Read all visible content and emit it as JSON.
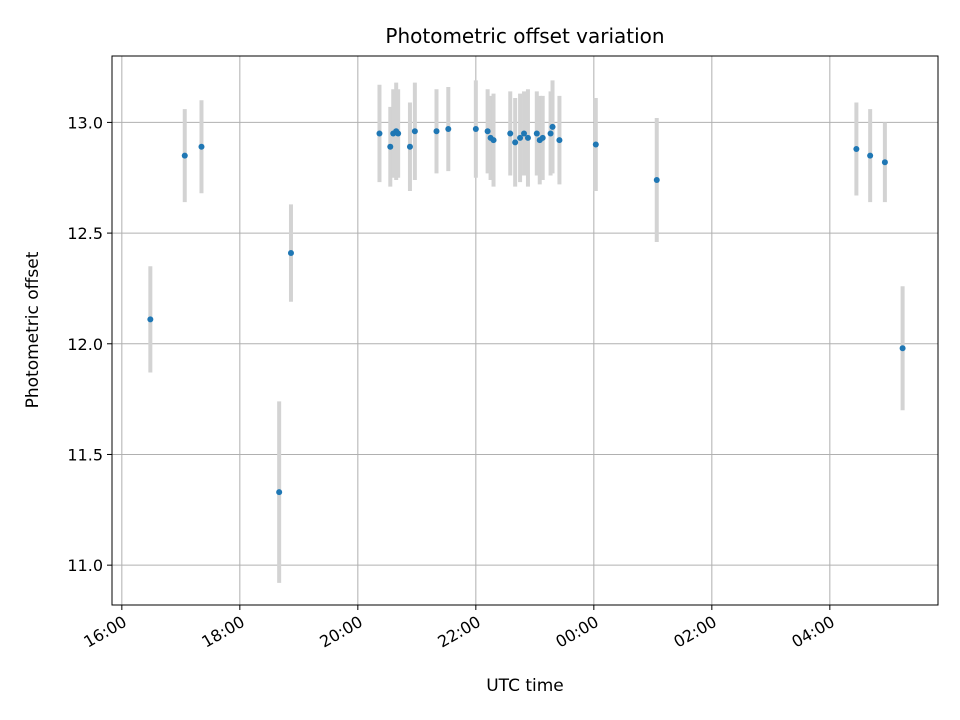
{
  "chart_data": {
    "type": "scatter",
    "title": "Photometric offset variation",
    "xlabel": "UTC time",
    "ylabel": "Photometric offset",
    "grid": true,
    "x_scale": "time",
    "xlim": [
      "15:50",
      "29:50"
    ],
    "ylim": [
      10.82,
      13.3
    ],
    "x_ticks": [
      {
        "value": "16:00",
        "label": "16:00"
      },
      {
        "value": "18:00",
        "label": "18:00"
      },
      {
        "value": "20:00",
        "label": "20:00"
      },
      {
        "value": "22:00",
        "label": "22:00"
      },
      {
        "value": "24:00",
        "label": "00:00"
      },
      {
        "value": "26:00",
        "label": "02:00"
      },
      {
        "value": "28:00",
        "label": "04:00"
      }
    ],
    "y_ticks": [
      11.0,
      11.5,
      12.0,
      12.5,
      13.0
    ],
    "y_tick_labels": [
      "11.0",
      "11.5",
      "12.0",
      "12.5",
      "13.0"
    ],
    "colors": {
      "points": "#1f77b4",
      "error_bars": "#d3d3d3",
      "grid": "#b0b0b0"
    },
    "series": [
      {
        "points": [
          {
            "x": "16:29",
            "y": 12.11,
            "err": 0.24
          },
          {
            "x": "17:04",
            "y": 12.85,
            "err": 0.21
          },
          {
            "x": "17:21",
            "y": 12.89,
            "err": 0.21
          },
          {
            "x": "18:40",
            "y": 11.33,
            "err": 0.41
          },
          {
            "x": "18:52",
            "y": 12.41,
            "err": 0.22
          },
          {
            "x": "20:22",
            "y": 12.95,
            "err": 0.22
          },
          {
            "x": "20:33",
            "y": 12.89,
            "err": 0.18
          },
          {
            "x": "20:36",
            "y": 12.95,
            "err": 0.2
          },
          {
            "x": "20:39",
            "y": 12.96,
            "err": 0.22
          },
          {
            "x": "20:41",
            "y": 12.95,
            "err": 0.2
          },
          {
            "x": "20:53",
            "y": 12.89,
            "err": 0.2
          },
          {
            "x": "20:58",
            "y": 12.96,
            "err": 0.22
          },
          {
            "x": "21:20",
            "y": 12.96,
            "err": 0.19
          },
          {
            "x": "21:32",
            "y": 12.97,
            "err": 0.19
          },
          {
            "x": "22:00",
            "y": 12.97,
            "err": 0.22
          },
          {
            "x": "22:12",
            "y": 12.96,
            "err": 0.19
          },
          {
            "x": "22:15",
            "y": 12.93,
            "err": 0.19
          },
          {
            "x": "22:18",
            "y": 12.92,
            "err": 0.21
          },
          {
            "x": "22:35",
            "y": 12.95,
            "err": 0.19
          },
          {
            "x": "22:40",
            "y": 12.91,
            "err": 0.2
          },
          {
            "x": "22:45",
            "y": 12.93,
            "err": 0.2
          },
          {
            "x": "22:49",
            "y": 12.95,
            "err": 0.19
          },
          {
            "x": "22:53",
            "y": 12.93,
            "err": 0.22
          },
          {
            "x": "23:02",
            "y": 12.95,
            "err": 0.19
          },
          {
            "x": "23:05",
            "y": 12.92,
            "err": 0.2
          },
          {
            "x": "23:08",
            "y": 12.93,
            "err": 0.19
          },
          {
            "x": "23:16",
            "y": 12.95,
            "err": 0.19
          },
          {
            "x": "23:18",
            "y": 12.98,
            "err": 0.21
          },
          {
            "x": "23:25",
            "y": 12.92,
            "err": 0.2
          },
          {
            "x": "24:02",
            "y": 12.9,
            "err": 0.21
          },
          {
            "x": "25:04",
            "y": 12.74,
            "err": 0.28
          },
          {
            "x": "28:27",
            "y": 12.88,
            "err": 0.21
          },
          {
            "x": "28:41",
            "y": 12.85,
            "err": 0.21
          },
          {
            "x": "28:56",
            "y": 12.82,
            "err": 0.18
          },
          {
            "x": "29:14",
            "y": 11.98,
            "err": 0.28
          }
        ]
      }
    ]
  }
}
